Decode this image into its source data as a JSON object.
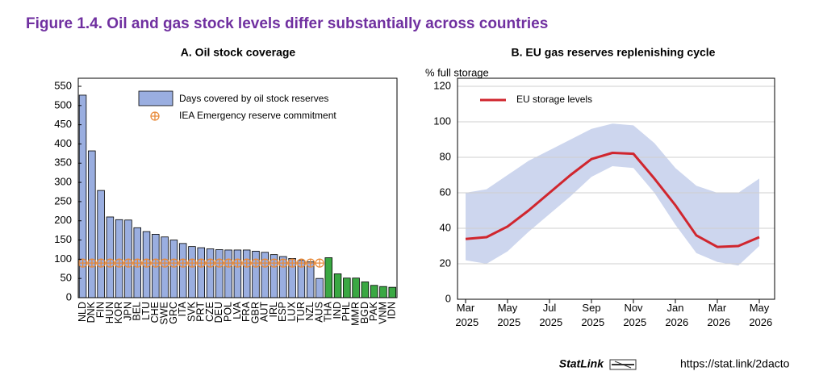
{
  "figure_title": "Figure 1.4. Oil and gas stock levels differ substantially across countries",
  "chart_data": [
    {
      "type": "bar",
      "title": "A. Oil stock coverage",
      "categories": [
        "NLD",
        "DNK",
        "FIN",
        "HUN",
        "KOR",
        "JPN",
        "BEL",
        "LTU",
        "CHE",
        "SWE",
        "GRC",
        "ITA",
        "SVK",
        "PRT",
        "CZE",
        "DEU",
        "POL",
        "LVA",
        "FRA",
        "GBR",
        "AUT",
        "IRL",
        "ESP",
        "LUX",
        "TUR",
        "NZL",
        "AUS",
        "THA",
        "IND",
        "PHL",
        "MMR",
        "BGD",
        "PAK",
        "VNM",
        "IDN"
      ],
      "series": [
        {
          "name": "Days covered by oil stock reserves",
          "color": "#9aaee0",
          "colors": [
            "#9aaee0",
            "#9aaee0",
            "#9aaee0",
            "#9aaee0",
            "#9aaee0",
            "#9aaee0",
            "#9aaee0",
            "#9aaee0",
            "#9aaee0",
            "#9aaee0",
            "#9aaee0",
            "#9aaee0",
            "#9aaee0",
            "#9aaee0",
            "#9aaee0",
            "#9aaee0",
            "#9aaee0",
            "#9aaee0",
            "#9aaee0",
            "#9aaee0",
            "#9aaee0",
            "#9aaee0",
            "#9aaee0",
            "#9aaee0",
            "#9aaee0",
            "#9aaee0",
            "#9aaee0",
            "#3aa843",
            "#3aa843",
            "#3aa843",
            "#3aa843",
            "#3aa843",
            "#3aa843",
            "#3aa843",
            "#3aa843"
          ],
          "values": [
            527,
            382,
            279,
            210,
            203,
            202,
            182,
            172,
            165,
            158,
            150,
            141,
            133,
            130,
            127,
            125,
            124,
            124,
            124,
            121,
            118,
            112,
            107,
            102,
            97,
            93,
            50,
            104,
            62,
            51,
            51,
            41,
            32,
            29,
            27
          ]
        },
        {
          "name": "IEA Emergency reserve commitment",
          "color": "#e88a3a",
          "marker": "circle-plus",
          "values": [
            90,
            90,
            90,
            90,
            90,
            90,
            90,
            90,
            90,
            90,
            90,
            90,
            90,
            90,
            90,
            90,
            90,
            90,
            90,
            90,
            90,
            90,
            90,
            90,
            90,
            90,
            90,
            null,
            null,
            null,
            null,
            null,
            null,
            null,
            null
          ]
        }
      ],
      "ylim": [
        0,
        550
      ],
      "yticks": [
        0,
        50,
        100,
        150,
        200,
        250,
        300,
        350,
        400,
        450,
        500,
        550
      ],
      "grid": false,
      "legend": "top-right"
    },
    {
      "type": "line",
      "title": "B. EU gas reserves replenishing cycle",
      "ylabel": "% full storage",
      "x": [
        "2025-03",
        "2025-04",
        "2025-05",
        "2025-06",
        "2025-07",
        "2025-08",
        "2025-09",
        "2025-10",
        "2025-11",
        "2025-12",
        "2026-01",
        "2026-02",
        "2026-03",
        "2026-04",
        "2026-05"
      ],
      "series": [
        {
          "name": "EU storage levels",
          "color": "#d0262e",
          "values": [
            34,
            35,
            41,
            50,
            60,
            70,
            79,
            82.5,
            82,
            68,
            53,
            36,
            29.5,
            30,
            35
          ]
        }
      ],
      "band": {
        "color": "#cdd6ee",
        "upper": [
          60,
          62,
          70,
          78,
          84,
          90,
          96,
          99,
          98,
          88,
          74,
          64,
          60,
          60,
          68
        ],
        "lower": [
          22,
          20,
          27,
          38,
          48,
          58,
          69,
          75,
          74,
          60,
          42,
          26,
          21,
          19,
          30
        ]
      },
      "xlim": [
        "2025-03",
        "2026-05"
      ],
      "xticks": [
        {
          "value": "2025-03",
          "label": "Mar 2025"
        },
        {
          "value": "2025-05",
          "label": "May 2025"
        },
        {
          "value": "2025-07",
          "label": "Jul 2025"
        },
        {
          "value": "2025-09",
          "label": "Sep 2025"
        },
        {
          "value": "2025-11",
          "label": "Nov 2025"
        },
        {
          "value": "2026-01",
          "label": "Jan 2026"
        },
        {
          "value": "2026-03",
          "label": "Mar 2026"
        },
        {
          "value": "2026-05",
          "label": "May 2026"
        }
      ],
      "ylim": [
        0,
        120
      ],
      "yticks": [
        0,
        20,
        40,
        60,
        80,
        100,
        120
      ],
      "grid": true,
      "legend": "top-left"
    }
  ],
  "footer": {
    "label": "StatLink",
    "url": "https://stat.link/2dacto"
  }
}
